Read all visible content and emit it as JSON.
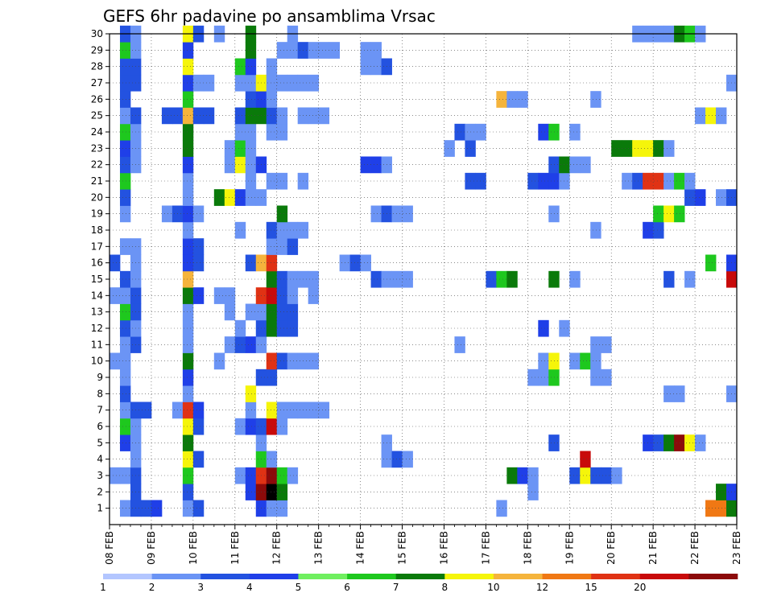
{
  "chart_data": {
    "type": "heatmap",
    "title": "GEFS 6hr padavine po ansamblima Vrsac",
    "xlabel": "",
    "ylabel": "",
    "x_ticks": [
      "08 FEB",
      "09 FEB",
      "10 FEB",
      "11 FEB",
      "12 FEB",
      "13 FEB",
      "14 FEB",
      "15 FEB",
      "16 FEB",
      "17 FEB",
      "18 FEB",
      "19 FEB",
      "20 FEB",
      "21 FEB",
      "22 FEB",
      "23 FEB"
    ],
    "y_ticks": [
      1,
      2,
      3,
      4,
      5,
      6,
      7,
      8,
      9,
      10,
      11,
      12,
      13,
      14,
      15,
      16,
      17,
      18,
      19,
      20,
      21,
      22,
      23,
      24,
      25,
      26,
      27,
      28,
      29,
      30
    ],
    "xlim": [
      0,
      60
    ],
    "ylim": [
      0,
      30
    ],
    "grid": true,
    "colorbar": {
      "levels": [
        "1",
        "2",
        "3",
        "4",
        "5",
        "6",
        "7",
        "8",
        "10",
        "12",
        "15",
        "20"
      ],
      "colors": [
        "#b3c6ff",
        "#6b94f5",
        "#2352e0",
        "#1f3fe8",
        "#6fef5f",
        "#1ec81e",
        "#0a7a0a",
        "#f5f50a",
        "#f5b43c",
        "#f07814",
        "#e03214",
        "#c80a0a",
        "#8c0a0a"
      ]
    },
    "cells": [
      [
        1,
        1,
        1
      ],
      [
        1,
        2,
        2
      ],
      [
        1,
        3,
        2
      ],
      [
        1,
        4,
        3
      ],
      [
        1,
        7,
        1
      ],
      [
        1,
        8,
        2
      ],
      [
        1,
        14,
        3
      ],
      [
        1,
        15,
        1
      ],
      [
        1,
        16,
        1
      ],
      [
        1,
        37,
        1
      ],
      [
        1,
        57,
        9
      ],
      [
        1,
        58,
        9
      ],
      [
        1,
        59,
        6
      ],
      [
        2,
        2,
        2
      ],
      [
        2,
        7,
        2
      ],
      [
        2,
        13,
        3
      ],
      [
        2,
        14,
        12
      ],
      [
        2,
        15,
        13
      ],
      [
        2,
        16,
        6
      ],
      [
        2,
        40,
        1
      ],
      [
        2,
        58,
        6
      ],
      [
        2,
        59,
        3
      ],
      [
        3,
        0,
        1
      ],
      [
        3,
        1,
        1
      ],
      [
        3,
        2,
        2
      ],
      [
        3,
        7,
        5
      ],
      [
        3,
        12,
        1
      ],
      [
        3,
        13,
        3
      ],
      [
        3,
        14,
        10
      ],
      [
        3,
        15,
        12
      ],
      [
        3,
        16,
        5
      ],
      [
        3,
        17,
        1
      ],
      [
        3,
        38,
        6
      ],
      [
        3,
        39,
        3
      ],
      [
        3,
        40,
        1
      ],
      [
        3,
        44,
        2
      ],
      [
        3,
        45,
        7
      ],
      [
        3,
        46,
        2
      ],
      [
        3,
        47,
        2
      ],
      [
        3,
        48,
        1
      ],
      [
        4,
        2,
        1
      ],
      [
        4,
        7,
        7
      ],
      [
        4,
        8,
        2
      ],
      [
        4,
        14,
        5
      ],
      [
        4,
        15,
        1
      ],
      [
        4,
        26,
        1
      ],
      [
        4,
        27,
        2
      ],
      [
        4,
        28,
        1
      ],
      [
        4,
        45,
        11
      ],
      [
        5,
        1,
        3
      ],
      [
        5,
        2,
        1
      ],
      [
        5,
        7,
        6
      ],
      [
        5,
        14,
        1
      ],
      [
        5,
        26,
        1
      ],
      [
        5,
        42,
        2
      ],
      [
        5,
        51,
        3
      ],
      [
        5,
        52,
        2
      ],
      [
        5,
        53,
        6
      ],
      [
        5,
        54,
        12
      ],
      [
        5,
        55,
        7
      ],
      [
        5,
        56,
        1
      ],
      [
        6,
        1,
        5
      ],
      [
        6,
        2,
        1
      ],
      [
        6,
        7,
        7
      ],
      [
        6,
        8,
        2
      ],
      [
        6,
        12,
        1
      ],
      [
        6,
        13,
        3
      ],
      [
        6,
        14,
        2
      ],
      [
        6,
        15,
        11
      ],
      [
        6,
        16,
        1
      ],
      [
        7,
        1,
        1
      ],
      [
        7,
        2,
        2
      ],
      [
        7,
        3,
        2
      ],
      [
        7,
        6,
        1
      ],
      [
        7,
        7,
        10
      ],
      [
        7,
        8,
        3
      ],
      [
        7,
        13,
        1
      ],
      [
        7,
        15,
        7
      ],
      [
        7,
        16,
        1
      ],
      [
        7,
        17,
        1
      ],
      [
        7,
        18,
        1
      ],
      [
        7,
        19,
        1
      ],
      [
        7,
        20,
        1
      ],
      [
        8,
        1,
        2
      ],
      [
        8,
        7,
        1
      ],
      [
        8,
        13,
        7
      ],
      [
        8,
        53,
        1
      ],
      [
        8,
        54,
        1
      ],
      [
        8,
        59,
        1
      ],
      [
        9,
        1,
        1
      ],
      [
        9,
        7,
        3
      ],
      [
        9,
        14,
        2
      ],
      [
        9,
        15,
        2
      ],
      [
        9,
        40,
        1
      ],
      [
        9,
        41,
        1
      ],
      [
        9,
        42,
        5
      ],
      [
        9,
        46,
        1
      ],
      [
        9,
        47,
        1
      ],
      [
        10,
        0,
        1
      ],
      [
        10,
        1,
        1
      ],
      [
        10,
        7,
        6
      ],
      [
        10,
        10,
        1
      ],
      [
        10,
        15,
        10
      ],
      [
        10,
        16,
        2
      ],
      [
        10,
        17,
        1
      ],
      [
        10,
        18,
        1
      ],
      [
        10,
        19,
        1
      ],
      [
        10,
        41,
        1
      ],
      [
        10,
        42,
        7
      ],
      [
        10,
        44,
        1
      ],
      [
        10,
        45,
        5
      ],
      [
        10,
        46,
        1
      ],
      [
        11,
        1,
        1
      ],
      [
        11,
        2,
        2
      ],
      [
        11,
        7,
        1
      ],
      [
        11,
        11,
        1
      ],
      [
        11,
        12,
        2
      ],
      [
        11,
        13,
        3
      ],
      [
        11,
        14,
        1
      ],
      [
        11,
        33,
        1
      ],
      [
        11,
        46,
        1
      ],
      [
        11,
        47,
        1
      ],
      [
        12,
        1,
        2
      ],
      [
        12,
        2,
        1
      ],
      [
        12,
        7,
        1
      ],
      [
        12,
        12,
        1
      ],
      [
        12,
        14,
        2
      ],
      [
        12,
        15,
        6
      ],
      [
        12,
        16,
        2
      ],
      [
        12,
        17,
        2
      ],
      [
        12,
        41,
        3
      ],
      [
        12,
        43,
        1
      ],
      [
        13,
        1,
        5
      ],
      [
        13,
        2,
        2
      ],
      [
        13,
        7,
        1
      ],
      [
        13,
        11,
        1
      ],
      [
        13,
        13,
        1
      ],
      [
        13,
        14,
        1
      ],
      [
        13,
        15,
        6
      ],
      [
        13,
        16,
        2
      ],
      [
        13,
        17,
        2
      ],
      [
        14,
        0,
        1
      ],
      [
        14,
        1,
        1
      ],
      [
        14,
        2,
        2
      ],
      [
        14,
        7,
        6
      ],
      [
        14,
        8,
        3
      ],
      [
        14,
        10,
        1
      ],
      [
        14,
        11,
        1
      ],
      [
        14,
        14,
        10
      ],
      [
        14,
        15,
        11
      ],
      [
        14,
        16,
        2
      ],
      [
        14,
        17,
        1
      ],
      [
        14,
        19,
        1
      ],
      [
        15,
        1,
        2
      ],
      [
        15,
        2,
        1
      ],
      [
        15,
        7,
        8
      ],
      [
        15,
        15,
        6
      ],
      [
        15,
        16,
        2
      ],
      [
        15,
        17,
        1
      ],
      [
        15,
        18,
        1
      ],
      [
        15,
        19,
        1
      ],
      [
        15,
        25,
        2
      ],
      [
        15,
        26,
        1
      ],
      [
        15,
        27,
        1
      ],
      [
        15,
        28,
        1
      ],
      [
        15,
        36,
        2
      ],
      [
        15,
        37,
        5
      ],
      [
        15,
        38,
        6
      ],
      [
        15,
        42,
        6
      ],
      [
        15,
        44,
        1
      ],
      [
        15,
        53,
        2
      ],
      [
        15,
        55,
        1
      ],
      [
        15,
        59,
        11
      ],
      [
        16,
        0,
        2
      ],
      [
        16,
        2,
        1
      ],
      [
        16,
        7,
        3
      ],
      [
        16,
        8,
        2
      ],
      [
        16,
        13,
        2
      ],
      [
        16,
        14,
        8
      ],
      [
        16,
        15,
        10
      ],
      [
        16,
        22,
        1
      ],
      [
        16,
        23,
        2
      ],
      [
        16,
        24,
        1
      ],
      [
        16,
        57,
        5
      ],
      [
        16,
        59,
        3
      ],
      [
        17,
        1,
        1
      ],
      [
        17,
        2,
        1
      ],
      [
        17,
        7,
        3
      ],
      [
        17,
        8,
        2
      ],
      [
        17,
        15,
        1
      ],
      [
        17,
        16,
        1
      ],
      [
        17,
        17,
        2
      ],
      [
        18,
        7,
        1
      ],
      [
        18,
        12,
        1
      ],
      [
        18,
        15,
        2
      ],
      [
        18,
        16,
        1
      ],
      [
        18,
        17,
        1
      ],
      [
        18,
        18,
        1
      ],
      [
        18,
        46,
        1
      ],
      [
        18,
        51,
        3
      ],
      [
        18,
        52,
        2
      ],
      [
        19,
        1,
        1
      ],
      [
        19,
        5,
        1
      ],
      [
        19,
        6,
        2
      ],
      [
        19,
        7,
        3
      ],
      [
        19,
        8,
        1
      ],
      [
        19,
        16,
        6
      ],
      [
        19,
        25,
        1
      ],
      [
        19,
        26,
        2
      ],
      [
        19,
        27,
        1
      ],
      [
        19,
        28,
        1
      ],
      [
        19,
        42,
        1
      ],
      [
        19,
        52,
        5
      ],
      [
        19,
        53,
        7
      ],
      [
        19,
        54,
        5
      ],
      [
        20,
        1,
        2
      ],
      [
        20,
        7,
        1
      ],
      [
        20,
        10,
        6
      ],
      [
        20,
        11,
        7
      ],
      [
        20,
        12,
        3
      ],
      [
        20,
        13,
        1
      ],
      [
        20,
        14,
        1
      ],
      [
        20,
        55,
        2
      ],
      [
        20,
        56,
        3
      ],
      [
        20,
        58,
        1
      ],
      [
        20,
        59,
        2
      ],
      [
        21,
        1,
        5
      ],
      [
        21,
        7,
        1
      ],
      [
        21,
        13,
        1
      ],
      [
        21,
        15,
        1
      ],
      [
        21,
        16,
        1
      ],
      [
        21,
        18,
        1
      ],
      [
        21,
        34,
        2
      ],
      [
        21,
        35,
        2
      ],
      [
        21,
        40,
        2
      ],
      [
        21,
        41,
        3
      ],
      [
        21,
        42,
        3
      ],
      [
        21,
        43,
        1
      ],
      [
        21,
        49,
        1
      ],
      [
        21,
        50,
        2
      ],
      [
        21,
        51,
        10
      ],
      [
        21,
        52,
        10
      ],
      [
        21,
        53,
        1
      ],
      [
        21,
        54,
        5
      ],
      [
        21,
        55,
        1
      ],
      [
        22,
        1,
        2
      ],
      [
        22,
        2,
        1
      ],
      [
        22,
        7,
        3
      ],
      [
        22,
        11,
        1
      ],
      [
        22,
        12,
        7
      ],
      [
        22,
        13,
        1
      ],
      [
        22,
        14,
        3
      ],
      [
        22,
        24,
        3
      ],
      [
        22,
        25,
        3
      ],
      [
        22,
        26,
        1
      ],
      [
        22,
        42,
        2
      ],
      [
        22,
        43,
        6
      ],
      [
        22,
        44,
        1
      ],
      [
        22,
        45,
        1
      ],
      [
        23,
        1,
        3
      ],
      [
        23,
        2,
        1
      ],
      [
        23,
        7,
        6
      ],
      [
        23,
        11,
        1
      ],
      [
        23,
        12,
        5
      ],
      [
        23,
        13,
        1
      ],
      [
        23,
        32,
        1
      ],
      [
        23,
        34,
        2
      ],
      [
        23,
        48,
        6
      ],
      [
        23,
        49,
        6
      ],
      [
        23,
        50,
        7
      ],
      [
        23,
        51,
        7
      ],
      [
        23,
        52,
        6
      ],
      [
        23,
        53,
        1
      ],
      [
        24,
        1,
        5
      ],
      [
        24,
        2,
        1
      ],
      [
        24,
        7,
        6
      ],
      [
        24,
        12,
        1
      ],
      [
        24,
        13,
        1
      ],
      [
        24,
        15,
        1
      ],
      [
        24,
        16,
        1
      ],
      [
        24,
        33,
        2
      ],
      [
        24,
        34,
        1
      ],
      [
        24,
        35,
        1
      ],
      [
        24,
        41,
        3
      ],
      [
        24,
        42,
        5
      ],
      [
        24,
        44,
        1
      ],
      [
        25,
        1,
        1
      ],
      [
        25,
        2,
        2
      ],
      [
        25,
        5,
        2
      ],
      [
        25,
        6,
        2
      ],
      [
        25,
        7,
        8
      ],
      [
        25,
        8,
        2
      ],
      [
        25,
        9,
        2
      ],
      [
        25,
        12,
        2
      ],
      [
        25,
        13,
        6
      ],
      [
        25,
        14,
        6
      ],
      [
        25,
        15,
        2
      ],
      [
        25,
        16,
        1
      ],
      [
        25,
        18,
        1
      ],
      [
        25,
        19,
        1
      ],
      [
        25,
        20,
        1
      ],
      [
        25,
        56,
        1
      ],
      [
        25,
        57,
        7
      ],
      [
        25,
        58,
        1
      ],
      [
        26,
        1,
        2
      ],
      [
        26,
        7,
        5
      ],
      [
        26,
        13,
        2
      ],
      [
        26,
        14,
        3
      ],
      [
        26,
        15,
        1
      ],
      [
        26,
        37,
        8
      ],
      [
        26,
        38,
        1
      ],
      [
        26,
        39,
        1
      ],
      [
        26,
        46,
        1
      ],
      [
        27,
        1,
        2
      ],
      [
        27,
        2,
        2
      ],
      [
        27,
        7,
        3
      ],
      [
        27,
        8,
        1
      ],
      [
        27,
        9,
        1
      ],
      [
        27,
        12,
        1
      ],
      [
        27,
        13,
        1
      ],
      [
        27,
        14,
        7
      ],
      [
        27,
        15,
        1
      ],
      [
        27,
        16,
        1
      ],
      [
        27,
        17,
        1
      ],
      [
        27,
        18,
        1
      ],
      [
        27,
        19,
        1
      ],
      [
        27,
        59,
        1
      ],
      [
        28,
        1,
        2
      ],
      [
        28,
        2,
        2
      ],
      [
        28,
        7,
        7
      ],
      [
        28,
        12,
        5
      ],
      [
        28,
        13,
        3
      ],
      [
        28,
        15,
        1
      ],
      [
        28,
        24,
        1
      ],
      [
        28,
        25,
        1
      ],
      [
        28,
        26,
        2
      ],
      [
        29,
        1,
        5
      ],
      [
        29,
        2,
        1
      ],
      [
        29,
        7,
        3
      ],
      [
        29,
        13,
        6
      ],
      [
        29,
        16,
        1
      ],
      [
        29,
        17,
        1
      ],
      [
        29,
        18,
        2
      ],
      [
        29,
        19,
        1
      ],
      [
        29,
        20,
        1
      ],
      [
        29,
        21,
        1
      ],
      [
        29,
        24,
        1
      ],
      [
        29,
        25,
        1
      ],
      [
        30,
        1,
        2
      ],
      [
        30,
        2,
        1
      ],
      [
        30,
        7,
        7
      ],
      [
        30,
        8,
        2
      ],
      [
        30,
        10,
        1
      ],
      [
        30,
        13,
        6
      ],
      [
        30,
        17,
        1
      ],
      [
        30,
        50,
        1
      ],
      [
        30,
        51,
        1
      ],
      [
        30,
        52,
        1
      ],
      [
        30,
        53,
        1
      ],
      [
        30,
        54,
        6
      ],
      [
        30,
        55,
        5
      ],
      [
        30,
        56,
        1
      ]
    ]
  }
}
